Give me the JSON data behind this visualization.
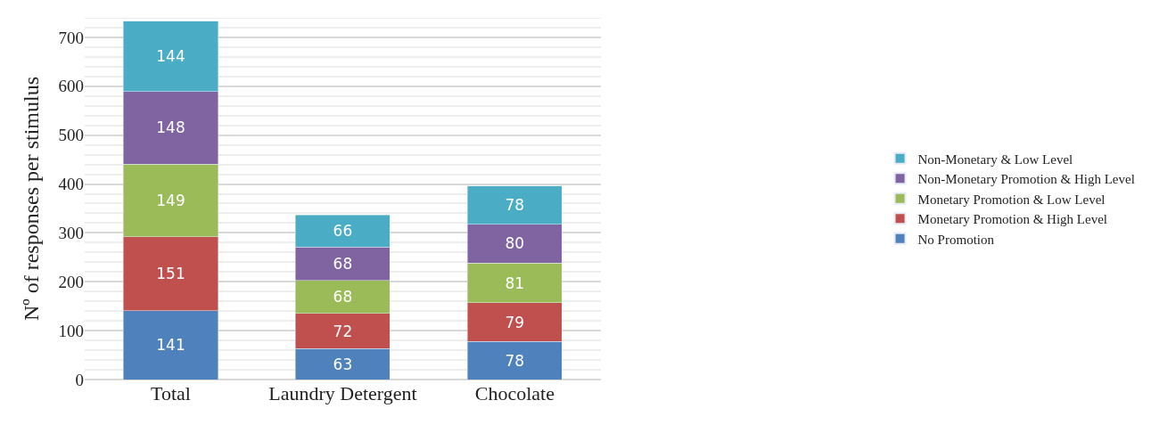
{
  "chart_data": {
    "type": "bar",
    "stacked": true,
    "ylabel": "Nº of responses per stimulus",
    "categories": [
      "Total",
      "Laundry Detergent",
      "Chocolate"
    ],
    "series": [
      {
        "name": "No Promotion",
        "color": "#4f81bd",
        "values": [
          141,
          63,
          78
        ]
      },
      {
        "name": "Monetary Promotion & High Level",
        "color": "#c0504d",
        "values": [
          151,
          72,
          79
        ]
      },
      {
        "name": "Monetary Promotion & Low Level",
        "color": "#9bbb59",
        "values": [
          149,
          68,
          81
        ]
      },
      {
        "name": "Non-Monetary Promotion & High Level",
        "color": "#8064a2",
        "values": [
          148,
          68,
          80
        ]
      },
      {
        "name": "Non-Monetary & Low Level",
        "color": "#4bacc6",
        "values": [
          144,
          66,
          78
        ]
      }
    ],
    "ylim": [
      0,
      740
    ],
    "yticks": [
      0,
      100,
      200,
      300,
      400,
      500,
      600,
      700
    ],
    "grid": "y",
    "legend": "right",
    "data_labels": true
  }
}
